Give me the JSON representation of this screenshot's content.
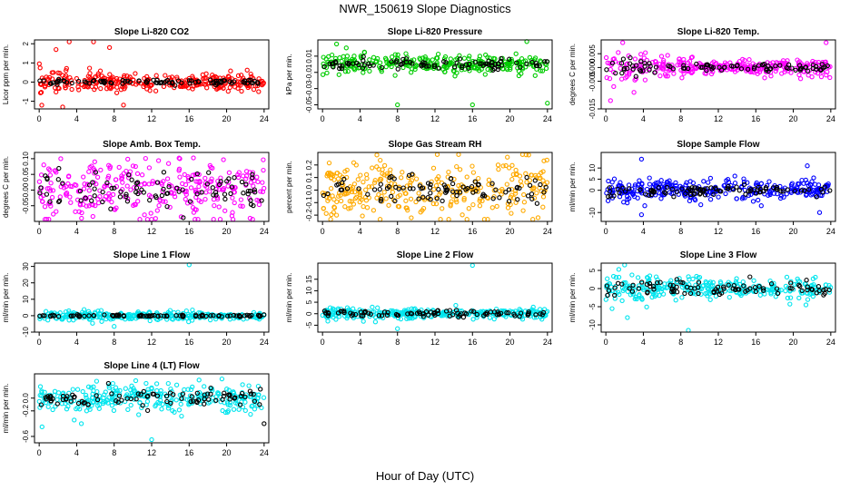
{
  "figure": {
    "title": "NWR_150619  Slope Diagnostics",
    "xlabel": "Hour of Day (UTC)"
  },
  "chart_data": [
    {
      "type": "scatter",
      "title": "Slope Li-820 CO2",
      "ylabel": "Licor ppm per min.",
      "xlim": [
        -0.5,
        24.5
      ],
      "ylim": [
        -1.4,
        2.2
      ],
      "xticks": [
        0,
        4,
        8,
        12,
        16,
        20,
        24
      ],
      "yticks": [
        -1,
        0,
        1,
        2
      ],
      "ytick_labels": [
        "-1",
        "0",
        "1",
        "2"
      ],
      "grid": false,
      "series": [
        {
          "color": "#ff0000",
          "spread": [
            0.35,
            0.18
          ],
          "extremes": [
            [
              2.5,
              -1.3
            ],
            [
              1.8,
              1.7
            ],
            [
              3.2,
              2.1
            ],
            [
              5.8,
              2.1
            ],
            [
              7.5,
              1.8
            ],
            [
              9.0,
              -1.2
            ]
          ]
        },
        {
          "color": "#000000",
          "spread": [
            0.07,
            0.06
          ],
          "extremes": []
        }
      ]
    },
    {
      "type": "scatter",
      "title": "Slope Li-820 Pressure",
      "ylabel": "kPa per min.",
      "xlim": [
        -0.5,
        24.5
      ],
      "ylim": [
        -0.055,
        0.03
      ],
      "xticks": [
        0,
        4,
        8,
        12,
        16,
        20,
        24
      ],
      "yticks": [
        -0.05,
        -0.03,
        -0.01,
        0.01
      ],
      "ytick_labels": [
        "-0.05",
        "-0.03",
        "-0.01",
        "0.01"
      ],
      "grid": false,
      "series": [
        {
          "color": "#00cc00",
          "spread": [
            0.007,
            0.005
          ],
          "extremes": [
            [
              1.5,
              0.025
            ],
            [
              8.0,
              -0.05
            ],
            [
              16.0,
              -0.05
            ],
            [
              24.0,
              -0.048
            ],
            [
              21.8,
              0.028
            ]
          ]
        },
        {
          "color": "#000000",
          "spread": [
            0.003,
            0.003
          ],
          "extremes": []
        }
      ]
    },
    {
      "type": "scatter",
      "title": "Slope Li-820 Temp.",
      "ylabel": "degrees C per min.",
      "xlim": [
        -0.5,
        24.5
      ],
      "ylim": [
        -0.015,
        0.01
      ],
      "xticks": [
        0,
        4,
        8,
        12,
        16,
        20,
        24
      ],
      "yticks": [
        -0.015,
        -0.005,
        0.0,
        0.005
      ],
      "ytick_labels": [
        "-0.015",
        "-0.005",
        "0.000",
        "0.005"
      ],
      "grid": false,
      "series": [
        {
          "color": "#ff00ff",
          "spread": [
            0.004,
            0.001
          ],
          "extremes": [
            [
              0.5,
              -0.012
            ],
            [
              1.8,
              0.009
            ],
            [
              23.5,
              0.009
            ],
            [
              3.0,
              -0.009
            ]
          ]
        },
        {
          "color": "#000000",
          "spread": [
            0.002,
            0.0005
          ],
          "extremes": []
        }
      ]
    },
    {
      "type": "scatter",
      "title": "Slope Amb. Box Temp.",
      "ylabel": "degrees C per min.",
      "xlim": [
        -0.5,
        24.5
      ],
      "ylim": [
        -0.1,
        0.12
      ],
      "xticks": [
        0,
        4,
        8,
        12,
        16,
        20,
        24
      ],
      "yticks": [
        -0.05,
        0.0,
        0.05,
        0.1
      ],
      "ytick_labels": [
        "-0.05",
        "0.00",
        "0.05",
        "0.10"
      ],
      "grid": false,
      "series": [
        {
          "color": "#ff00ff",
          "spread": [
            0.045,
            0.045
          ],
          "extremes": [
            [
              2.3,
              0.1
            ],
            [
              15.0,
              0.1
            ],
            [
              22.5,
              -0.09
            ]
          ]
        },
        {
          "color": "#000000",
          "spread": [
            0.03,
            0.03
          ],
          "extremes": []
        }
      ]
    },
    {
      "type": "scatter",
      "title": "Slope Gas Stream RH",
      "ylabel": "percent per min.",
      "xlim": [
        -0.5,
        24.5
      ],
      "ylim": [
        -0.25,
        0.3
      ],
      "xticks": [
        0,
        4,
        8,
        12,
        16,
        20,
        24
      ],
      "yticks": [
        -0.2,
        -0.1,
        0.0,
        0.1,
        0.2
      ],
      "ytick_labels": [
        "-0.2",
        "-0.1",
        "0.0",
        "0.1",
        "0.2"
      ],
      "grid": false,
      "series": [
        {
          "color": "#ffaa00",
          "spread": [
            0.12,
            0.12
          ],
          "extremes": [
            [
              5.8,
              0.28
            ],
            [
              22.0,
              0.28
            ],
            [
              1.5,
              -0.2
            ],
            [
              23.0,
              -0.22
            ]
          ]
        },
        {
          "color": "#000000",
          "spread": [
            0.06,
            0.06
          ],
          "extremes": []
        }
      ]
    },
    {
      "type": "scatter",
      "title": "Slope Sample Flow",
      "ylabel": "ml/min per min.",
      "xlim": [
        -0.5,
        24.5
      ],
      "ylim": [
        -14,
        17
      ],
      "xticks": [
        0,
        4,
        8,
        12,
        16,
        20,
        24
      ],
      "yticks": [
        -10,
        0,
        5,
        10
      ],
      "ytick_labels": [
        "-10",
        "0",
        "5",
        "10"
      ],
      "grid": false,
      "series": [
        {
          "color": "#0000ff",
          "spread": [
            3.0,
            2.0
          ],
          "extremes": [
            [
              3.8,
              14.0
            ],
            [
              3.8,
              -11.0
            ],
            [
              21.5,
              11.0
            ],
            [
              22.8,
              -10.0
            ]
          ]
        },
        {
          "color": "#000000",
          "spread": [
            1.5,
            1.0
          ],
          "extremes": []
        }
      ]
    },
    {
      "type": "scatter",
      "title": "Slope Line 1 Flow",
      "ylabel": "ml/min per min.",
      "xlim": [
        -0.5,
        24.5
      ],
      "ylim": [
        -10,
        32
      ],
      "xticks": [
        0,
        4,
        8,
        12,
        16,
        20,
        24
      ],
      "yticks": [
        -10,
        0,
        10,
        20,
        30
      ],
      "ytick_labels": [
        "-10",
        "0",
        "10",
        "20",
        "30"
      ],
      "grid": false,
      "series": [
        {
          "color": "#00e5ee",
          "spread": [
            1.5,
            1.2
          ],
          "extremes": [
            [
              16.0,
              31.0
            ],
            [
              8.0,
              -6.5
            ]
          ]
        },
        {
          "color": "#000000",
          "spread": [
            0.3,
            0.3
          ],
          "extremes": []
        }
      ]
    },
    {
      "type": "scatter",
      "title": "Slope Line 2 Flow",
      "ylabel": "ml/min per min.",
      "xlim": [
        -0.5,
        24.5
      ],
      "ylim": [
        -8,
        22
      ],
      "xticks": [
        0,
        4,
        8,
        12,
        16,
        20,
        24
      ],
      "yticks": [
        -5,
        0,
        5,
        10,
        15
      ],
      "ytick_labels": [
        "-5",
        "0",
        "5",
        "10",
        "15"
      ],
      "grid": false,
      "series": [
        {
          "color": "#00e5ee",
          "spread": [
            1.5,
            1.0
          ],
          "extremes": [
            [
              16.0,
              21.0
            ],
            [
              8.0,
              -6.5
            ]
          ]
        },
        {
          "color": "#000000",
          "spread": [
            0.8,
            0.6
          ],
          "extremes": []
        }
      ]
    },
    {
      "type": "scatter",
      "title": "Slope Line 3 Flow",
      "ylabel": "ml/min per min.",
      "xlim": [
        -0.5,
        24.5
      ],
      "ylim": [
        -12,
        7
      ],
      "xticks": [
        0,
        4,
        8,
        12,
        16,
        20,
        24
      ],
      "yticks": [
        -10,
        -5,
        0,
        5
      ],
      "ytick_labels": [
        "-10",
        "-5",
        "0",
        "5"
      ],
      "grid": false,
      "series": [
        {
          "color": "#00e5ee",
          "spread": [
            2.5,
            1.2
          ],
          "extremes": [
            [
              2.3,
              -8.0
            ],
            [
              2.0,
              6.5
            ],
            [
              8.8,
              -11.5
            ]
          ]
        },
        {
          "color": "#000000",
          "spread": [
            1.5,
            0.8
          ],
          "extremes": []
        }
      ]
    },
    {
      "type": "scatter",
      "title": "Slope Line 4 (LT) Flow",
      "ylabel": "ml/min per min.",
      "xlim": [
        -0.5,
        24.5
      ],
      "ylim": [
        -0.7,
        0.38
      ],
      "xticks": [
        0,
        4,
        8,
        12,
        16,
        20,
        24
      ],
      "yticks": [
        -0.6,
        -0.2,
        0.0
      ],
      "ytick_labels": [
        "-0.6",
        "-0.2",
        "0.0"
      ],
      "grid": false,
      "series": [
        {
          "color": "#00e5ee",
          "spread": [
            0.11,
            0.11
          ],
          "extremes": [
            [
              12.0,
              -0.65
            ],
            [
              0.3,
              -0.45
            ],
            [
              4.5,
              -0.4
            ],
            [
              19.5,
              0.3
            ]
          ]
        },
        {
          "color": "#000000",
          "spread": [
            0.07,
            0.07
          ],
          "extremes": [
            [
              24.0,
              -0.4
            ]
          ]
        }
      ]
    }
  ]
}
